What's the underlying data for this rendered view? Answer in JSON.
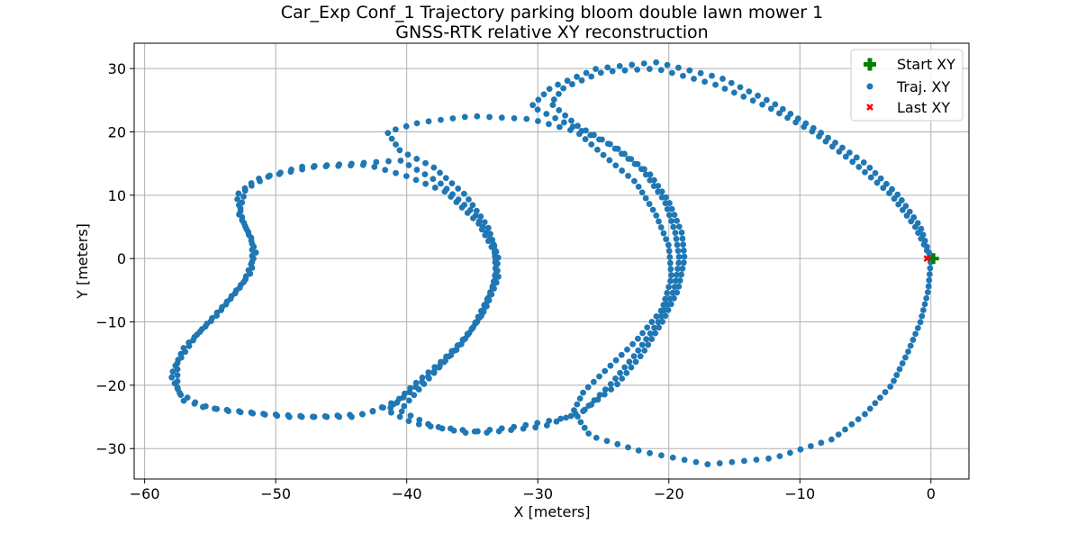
{
  "chart_data": {
    "type": "scatter",
    "title": "Car_Exp Conf_1 Trajectory parking bloom double lawn mower 1",
    "subtitle": "GNSS-RTK relative XY reconstruction",
    "xlabel": "X [meters]",
    "ylabel": "Y [meters]",
    "xlim": [
      -60.8,
      2.9
    ],
    "ylim": [
      -34.8,
      34.0
    ],
    "xticks": [
      -60,
      -50,
      -40,
      -30,
      -20,
      -10,
      0
    ],
    "yticks": [
      -30,
      -20,
      -10,
      0,
      10,
      20,
      30
    ],
    "xtick_labels": [
      "−60",
      "−50",
      "−40",
      "−30",
      "−20",
      "−10",
      "0"
    ],
    "ytick_labels": [
      "−30",
      "−20",
      "−10",
      "0",
      "10",
      "20",
      "30"
    ],
    "grid": true,
    "legend_position": "top-right",
    "colors": {
      "trajectory": "#1f77b4",
      "start": "#008000",
      "last": "#ff0000"
    },
    "series": [
      {
        "name": "Start XY",
        "marker": "plus",
        "points": [
          [
            0.2,
            0.0
          ]
        ]
      },
      {
        "name": "Traj. XY",
        "marker": "circle",
        "anchors": [
          [
            0.0,
            0.0
          ],
          [
            -0.8,
            5.0
          ],
          [
            -2.5,
            10.0
          ],
          [
            -5.0,
            15.0
          ],
          [
            -8.5,
            20.0
          ],
          [
            -12.0,
            24.5
          ],
          [
            -16.0,
            28.5
          ],
          [
            -21.0,
            31.0
          ],
          [
            -25.5,
            30.0
          ],
          [
            -29.0,
            27.0
          ],
          [
            -30.5,
            24.0
          ],
          [
            -27.5,
            21.0
          ],
          [
            -24.5,
            18.0
          ],
          [
            -22.0,
            14.0
          ],
          [
            -20.3,
            9.0
          ],
          [
            -19.5,
            4.0
          ],
          [
            -19.2,
            0.0
          ],
          [
            -19.6,
            -5.0
          ],
          [
            -20.8,
            -10.0
          ],
          [
            -22.5,
            -15.0
          ],
          [
            -24.5,
            -20.0
          ],
          [
            -27.0,
            -25.0
          ],
          [
            -26.0,
            -28.0
          ],
          [
            -22.0,
            -30.5
          ],
          [
            -17.0,
            -32.5
          ],
          [
            -12.0,
            -31.5
          ],
          [
            -7.5,
            -28.5
          ],
          [
            -5.0,
            -24.5
          ],
          [
            -3.0,
            -20.0
          ],
          [
            -1.8,
            -15.0
          ],
          [
            -0.8,
            -10.0
          ],
          [
            -0.2,
            -5.0
          ],
          [
            0.0,
            0.0
          ],
          [
            -1.2,
            5.0
          ],
          [
            -3.0,
            10.0
          ],
          [
            -5.8,
            15.0
          ],
          [
            -9.0,
            20.0
          ],
          [
            -12.5,
            24.0
          ],
          [
            -16.5,
            27.5
          ],
          [
            -21.0,
            30.0
          ],
          [
            -25.0,
            29.5
          ],
          [
            -28.0,
            27.0
          ],
          [
            -29.0,
            24.5
          ],
          [
            -27.0,
            21.0
          ],
          [
            -24.0,
            17.5
          ],
          [
            -21.5,
            13.5
          ],
          [
            -20.0,
            9.0
          ],
          [
            -19.0,
            4.0
          ],
          [
            -18.8,
            0.0
          ],
          [
            -19.3,
            -5.0
          ],
          [
            -20.5,
            -10.0
          ],
          [
            -22.0,
            -15.0
          ],
          [
            -24.0,
            -20.0
          ],
          [
            -26.5,
            -24.0
          ],
          [
            -29.5,
            -26.5
          ],
          [
            -34.0,
            -27.5
          ],
          [
            -38.0,
            -26.5
          ],
          [
            -40.5,
            -24.0
          ],
          [
            -39.0,
            -20.5
          ],
          [
            -37.0,
            -16.0
          ],
          [
            -35.0,
            -11.0
          ],
          [
            -33.5,
            -5.0
          ],
          [
            -33.0,
            0.0
          ],
          [
            -33.8,
            5.0
          ],
          [
            -35.5,
            10.0
          ],
          [
            -38.0,
            14.5
          ],
          [
            -40.5,
            17.0
          ],
          [
            -41.5,
            20.0
          ],
          [
            -39.0,
            21.5
          ],
          [
            -35.0,
            22.5
          ],
          [
            -30.5,
            22.0
          ],
          [
            -27.0,
            20.0
          ],
          [
            -24.8,
            16.0
          ],
          [
            -22.5,
            12.0
          ],
          [
            -21.0,
            7.0
          ],
          [
            -20.0,
            2.0
          ],
          [
            -19.8,
            -3.0
          ],
          [
            -20.5,
            -8.0
          ],
          [
            -22.5,
            -13.0
          ],
          [
            -24.5,
            -17.0
          ],
          [
            -26.5,
            -21.0
          ],
          [
            -27.5,
            -25.0
          ],
          [
            -31.5,
            -26.5
          ],
          [
            -35.5,
            -27.5
          ],
          [
            -39.5,
            -26.0
          ],
          [
            -41.5,
            -24.0
          ],
          [
            -40.0,
            -21.5
          ],
          [
            -38.0,
            -18.0
          ],
          [
            -36.0,
            -14.0
          ],
          [
            -34.3,
            -9.0
          ],
          [
            -33.2,
            -3.0
          ],
          [
            -33.3,
            2.0
          ],
          [
            -34.8,
            7.0
          ],
          [
            -37.5,
            12.0
          ],
          [
            -40.5,
            15.5
          ],
          [
            -44.0,
            15.0
          ],
          [
            -48.0,
            14.5
          ],
          [
            -51.5,
            12.5
          ],
          [
            -53.0,
            10.0
          ],
          [
            -52.5,
            6.0
          ],
          [
            -51.5,
            1.0
          ],
          [
            -52.5,
            -4.0
          ],
          [
            -54.5,
            -9.0
          ],
          [
            -57.0,
            -14.0
          ],
          [
            -58.0,
            -18.5
          ],
          [
            -57.0,
            -22.5
          ],
          [
            -54.0,
            -24.0
          ],
          [
            -49.0,
            -25.0
          ],
          [
            -44.0,
            -25.0
          ],
          [
            -41.0,
            -23.0
          ],
          [
            -39.5,
            -20.0
          ],
          [
            -37.5,
            -16.5
          ],
          [
            -35.5,
            -12.5
          ],
          [
            -34.0,
            -8.0
          ],
          [
            -33.0,
            -3.0
          ],
          [
            -33.3,
            1.0
          ],
          [
            -34.5,
            5.5
          ],
          [
            -37.0,
            10.5
          ],
          [
            -40.0,
            13.0
          ],
          [
            -43.0,
            14.8
          ],
          [
            -47.0,
            14.5
          ],
          [
            -50.5,
            13.0
          ],
          [
            -52.3,
            11.0
          ],
          [
            -52.8,
            7.0
          ],
          [
            -51.8,
            3.0
          ],
          [
            -51.8,
            -2.0
          ],
          [
            -53.8,
            -7.0
          ],
          [
            -56.0,
            -12.0
          ],
          [
            -57.5,
            -16.5
          ],
          [
            -57.5,
            -21.0
          ],
          [
            -55.5,
            -23.5
          ],
          [
            -51.0,
            -24.5
          ],
          [
            -47.0,
            -25.0
          ],
          [
            -43.0,
            -24.5
          ],
          [
            -40.8,
            -22.5
          ]
        ]
      },
      {
        "name": "Last XY",
        "marker": "x",
        "points": [
          [
            -0.3,
            0.0
          ]
        ]
      }
    ]
  }
}
